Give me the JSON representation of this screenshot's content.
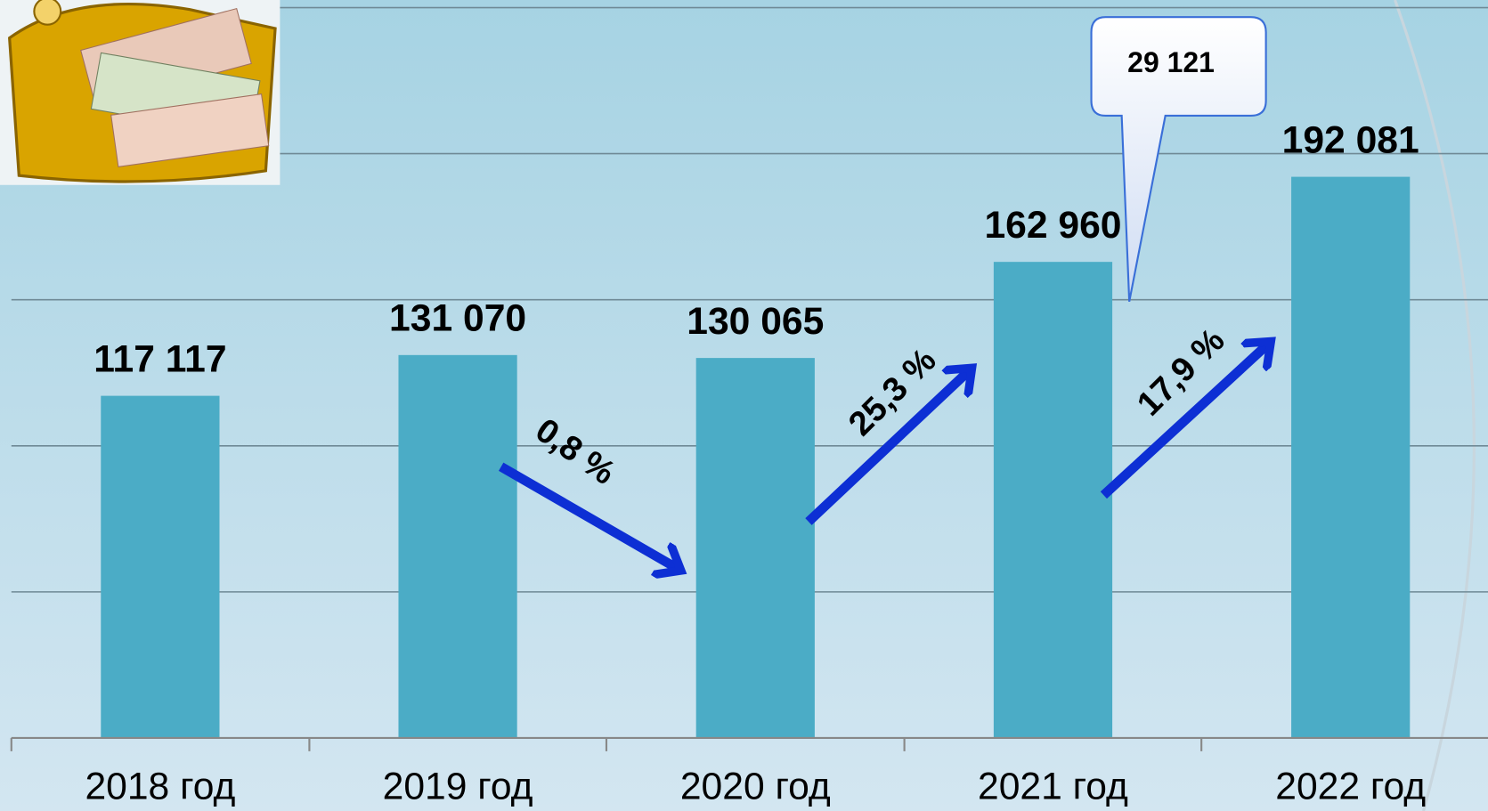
{
  "chart_data": {
    "type": "bar",
    "categories": [
      "2018 год",
      "2019 год",
      "2020 год",
      "2021 год",
      "2022 год"
    ],
    "values": [
      117117,
      131070,
      130065,
      162960,
      192081
    ],
    "value_labels": [
      "117 117",
      "131 070",
      "130 065",
      "162 960",
      "192 081"
    ],
    "color": "#4bacc6",
    "ylim": [
      0,
      250000
    ],
    "yticks": [
      0,
      50000,
      100000,
      150000,
      200000,
      250000
    ],
    "grid": true,
    "annotations": [
      "0,8 %",
      "25,3 %",
      "17,9 %",
      "29 121"
    ]
  }
}
